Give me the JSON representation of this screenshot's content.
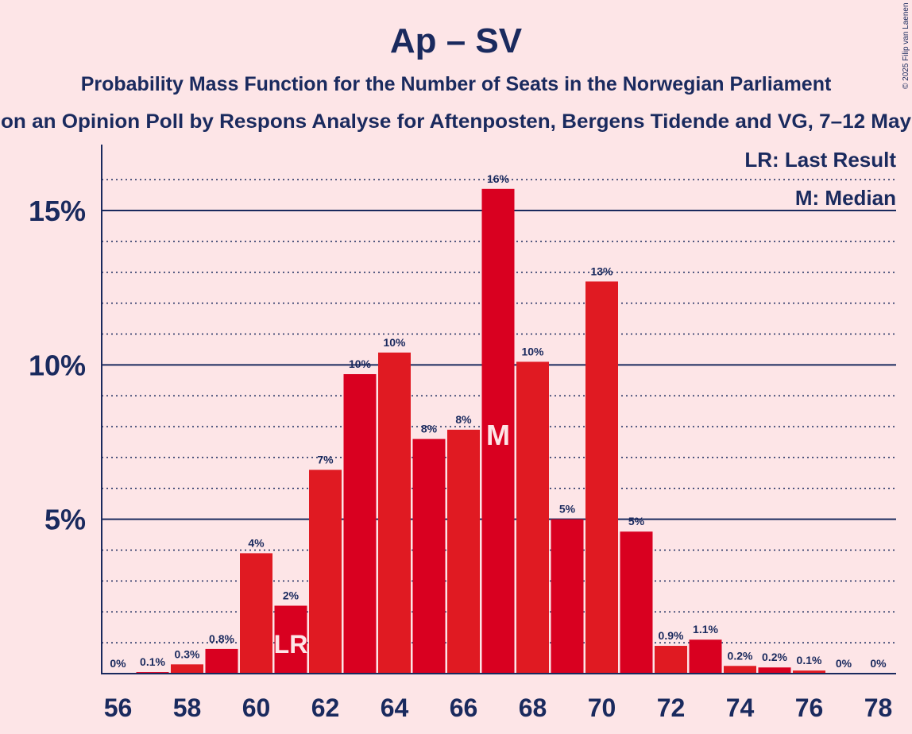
{
  "chart_data": {
    "type": "bar",
    "title": "Ap – SV",
    "subtitle_1": "Probability Mass Function for the Number of Seats in the Norwegian Parliament",
    "subtitle_2": "on an Opinion Poll by Respons Analyse for Aftenposten, Bergens Tidende and VG, 7–12 May",
    "copyright": "© 2025 Filip van Laenen",
    "legend": {
      "lr": "LR: Last Result",
      "m": "M: Median",
      "placement": "top-right"
    },
    "x": [
      56,
      57,
      58,
      59,
      60,
      61,
      62,
      63,
      64,
      65,
      66,
      67,
      68,
      69,
      70,
      71,
      72,
      73,
      74,
      75,
      76,
      77,
      78
    ],
    "values": [
      0,
      0.05,
      0.3,
      0.8,
      3.9,
      2.2,
      6.6,
      9.7,
      10.4,
      7.6,
      7.9,
      15.7,
      10.1,
      5.0,
      12.7,
      4.6,
      0.9,
      1.1,
      0.25,
      0.2,
      0.1,
      0,
      0
    ],
    "data_labels": [
      "0%",
      "0.1%",
      "0.3%",
      "0.8%",
      "4%",
      "2%",
      "7%",
      "10%",
      "10%",
      "8%",
      "8%",
      "16%",
      "10%",
      "5%",
      "13%",
      "5%",
      "0.9%",
      "1.1%",
      "0.2%",
      "0.2%",
      "0.1%",
      "0%",
      "0%"
    ],
    "x_tick_labels": [
      "56",
      "58",
      "60",
      "62",
      "64",
      "66",
      "68",
      "70",
      "72",
      "74",
      "76",
      "78"
    ],
    "y_ticks": [
      5,
      10,
      15
    ],
    "y_tick_labels": [
      "5%",
      "10%",
      "15%"
    ],
    "ylim": [
      0,
      17
    ],
    "last_result_seat": 61,
    "last_result_marker": "LR",
    "median_seat": 67,
    "median_marker": "M",
    "colors": {
      "bar_light": "#e01a22",
      "bar_dark": "#d90020",
      "axis": "#1a2a5e",
      "background": "#fde5e7",
      "marker_text": "#fde5e7"
    }
  }
}
